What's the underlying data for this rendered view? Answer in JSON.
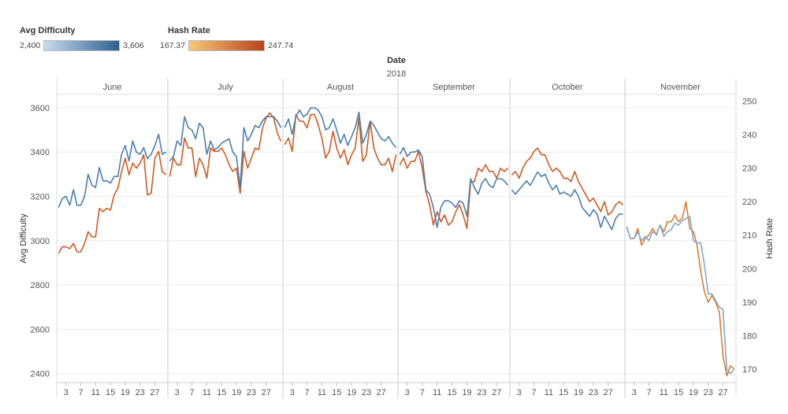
{
  "legend": {
    "difficulty": {
      "title": "Avg Difficulty",
      "min": "2,400",
      "max": "3,606",
      "color_low": "#c7dcef",
      "color_high": "#2f5f8f"
    },
    "hashrate": {
      "title": "Hash Rate",
      "min": "167.37",
      "max": "247.74",
      "color_low": "#f9c77c",
      "color_high": "#b5431c"
    }
  },
  "chart_data": {
    "type": "line",
    "header": {
      "title": "Date",
      "subtitle": "2018"
    },
    "months": [
      "June",
      "July",
      "August",
      "September",
      "October",
      "November"
    ],
    "month_days": [
      30,
      31,
      31,
      30,
      31,
      30
    ],
    "x_tick_labels": [
      "3",
      "7",
      "11",
      "15",
      "19",
      "23",
      "27"
    ],
    "x_tick_days": [
      3,
      7,
      11,
      15,
      19,
      23,
      27
    ],
    "y_left": {
      "label": "Avg Difficulty",
      "ylim": [
        2360,
        3660
      ],
      "ticks": [
        2400,
        2600,
        2800,
        3000,
        3200,
        3400,
        3600
      ]
    },
    "y_right": {
      "label": "Hash Rate",
      "ylim": [
        166,
        252
      ],
      "ticks": [
        170,
        180,
        190,
        200,
        210,
        220,
        230,
        240,
        250
      ]
    },
    "grid": true,
    "series": [
      {
        "axis": "left",
        "color": "#4a7eb0",
        "values": [
          [
            3150,
            3190,
            3200,
            3160,
            3230,
            3160,
            3160,
            3200,
            3300,
            3250,
            3240,
            3330,
            3270,
            3270,
            3260,
            3290,
            3290,
            3390,
            3430,
            3360,
            3450,
            3400,
            3390,
            3420,
            3370,
            3390,
            3430,
            3480,
            3390,
            3400
          ],
          [
            3360,
            3380,
            3450,
            3430,
            3560,
            3510,
            3500,
            3460,
            3530,
            3510,
            3390,
            3450,
            3410,
            3420,
            3440,
            3450,
            3460,
            3400,
            3380,
            3240,
            3510,
            3450,
            3480,
            3520,
            3510,
            3540,
            3560,
            3560,
            3560,
            3540,
            3510
          ],
          [
            3510,
            3550,
            3480,
            3560,
            3590,
            3560,
            3570,
            3600,
            3600,
            3590,
            3560,
            3500,
            3510,
            3550,
            3500,
            3440,
            3480,
            3430,
            3470,
            3510,
            3580,
            3440,
            3480,
            3540,
            3520,
            3490,
            3460,
            3450,
            3470,
            3440,
            3420
          ],
          [
            3390,
            3420,
            3380,
            3400,
            3400,
            3410,
            3380,
            3230,
            3210,
            3150,
            3060,
            3150,
            3180,
            3180,
            3170,
            3150,
            3180,
            3170,
            3110,
            3280,
            3240,
            3210,
            3260,
            3280,
            3250,
            3240,
            3280,
            3280,
            3270,
            3250
          ],
          [
            3230,
            3210,
            3230,
            3250,
            3270,
            3250,
            3280,
            3310,
            3290,
            3300,
            3260,
            3230,
            3250,
            3210,
            3220,
            3210,
            3200,
            3230,
            3200,
            3150,
            3130,
            3110,
            3140,
            3120,
            3060,
            3110,
            3080,
            3050,
            3100,
            3120,
            3120
          ],
          [
            3060,
            3010,
            3010,
            3040,
            3000,
            3020,
            3000,
            3040,
            3030,
            3070,
            3020,
            3040,
            3050,
            3080,
            3070,
            3090,
            3100,
            3110,
            3000,
            2990,
            2990,
            2890,
            2760,
            2760,
            2730,
            2700,
            2690,
            2420,
            2400,
            2420
          ]
        ]
      },
      {
        "axis": "right",
        "color": "#cf5a22",
        "values": [
          [
            204.5,
            206.5,
            206.5,
            206,
            207.5,
            205,
            205,
            207.5,
            211,
            209.5,
            209.5,
            218,
            217,
            218,
            217.5,
            222,
            224,
            229,
            233,
            228,
            231.5,
            230,
            231.5,
            234,
            222,
            222.5,
            233,
            235,
            229,
            228
          ],
          [
            227.5,
            233,
            231,
            231,
            239,
            236,
            236,
            227.5,
            233,
            231,
            227,
            236,
            235,
            235,
            236,
            234,
            231,
            229,
            230,
            222.5,
            235,
            230,
            233,
            236,
            235.5,
            242,
            245,
            246.5,
            245,
            240.5,
            238
          ],
          [
            237,
            239,
            235,
            246,
            244,
            244,
            242,
            246,
            246,
            243,
            239,
            233,
            235,
            241,
            236,
            233,
            235.5,
            231,
            234,
            236,
            245,
            232,
            234,
            244,
            236,
            233,
            231,
            231,
            233,
            229,
            234
          ],
          [
            231,
            233,
            230,
            232,
            232,
            235,
            230,
            223,
            219,
            213,
            217,
            214,
            216,
            213,
            214,
            217,
            219,
            216,
            212,
            226,
            226,
            230,
            229,
            231,
            229,
            229,
            227,
            230,
            229,
            230
          ],
          [
            228,
            229,
            227,
            230,
            232,
            233,
            235,
            236,
            234,
            234,
            231,
            229,
            230,
            229,
            227,
            227,
            226,
            229,
            226,
            224,
            222,
            220,
            221,
            219,
            217,
            220,
            216,
            217,
            219,
            220,
            219
          ],
          [
            212.5,
            209,
            209,
            212,
            207,
            209,
            210,
            212,
            210,
            213,
            211,
            214,
            214,
            216,
            214,
            215,
            220,
            212,
            211,
            207,
            199,
            193,
            190,
            192,
            190,
            187,
            174,
            168,
            171,
            170
          ]
        ]
      }
    ]
  }
}
